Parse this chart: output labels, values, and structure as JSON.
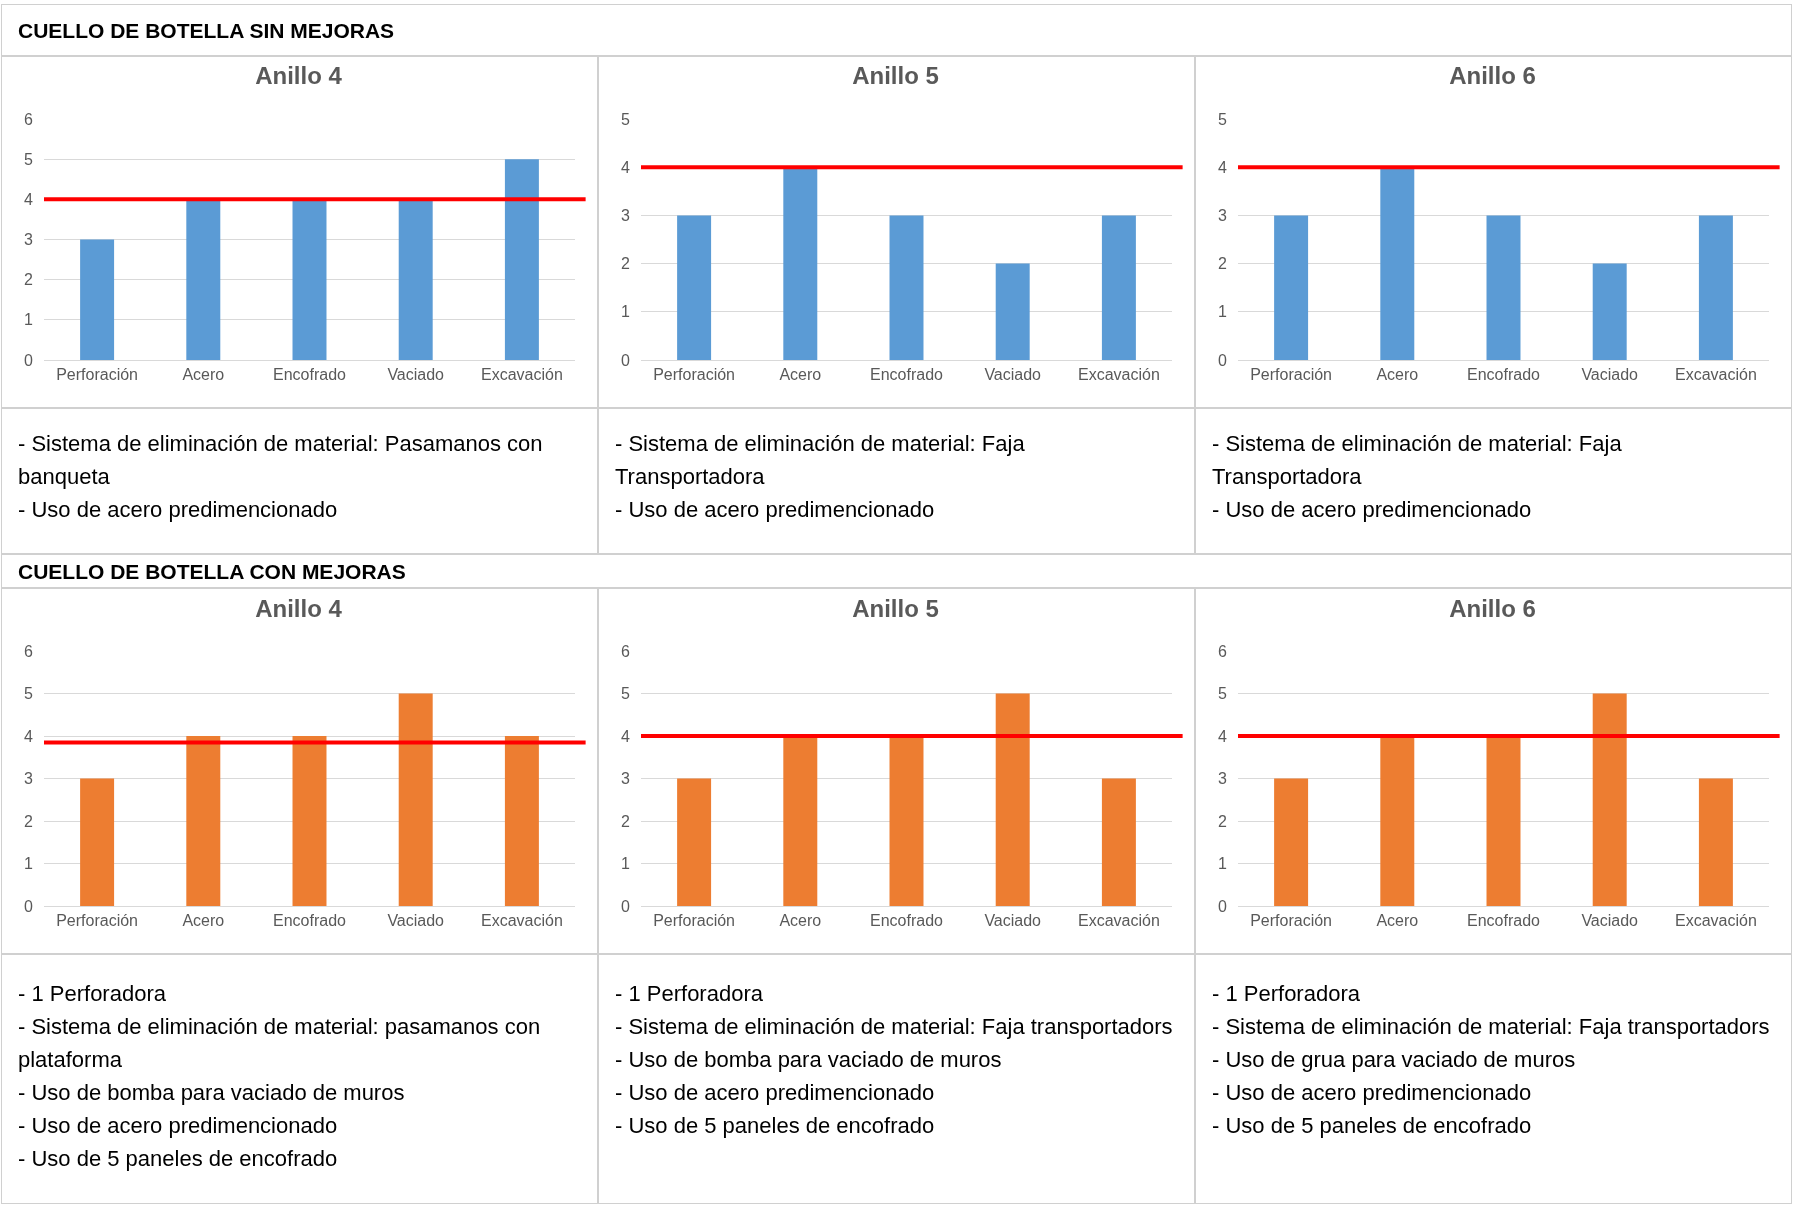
{
  "chart_data": [
    {
      "type": "other",
      "title": "CUELLO DE BOTELLA SIN MEJORAS"
    },
    {
      "type": "bar",
      "title": "Anillo 4",
      "categories": [
        "Perforación",
        "Acero",
        "Encofrado",
        "Vaciado",
        "Excavación"
      ],
      "values": [
        3,
        4,
        4,
        4,
        5
      ],
      "color": "#5b9bd5",
      "ylim": [
        0,
        6
      ],
      "yticks": [
        0,
        1,
        2,
        3,
        4,
        5,
        6
      ],
      "grid": "y",
      "ref_lines": [
        {
          "axis": "y",
          "value": 4,
          "color": "#ff0000"
        }
      ]
    },
    {
      "type": "bar",
      "title": "Anillo 5",
      "categories": [
        "Perforación",
        "Acero",
        "Encofrado",
        "Vaciado",
        "Excavación"
      ],
      "values": [
        3,
        4,
        3,
        2,
        3
      ],
      "color": "#5b9bd5",
      "ylim": [
        0,
        5
      ],
      "yticks": [
        0,
        1,
        2,
        3,
        4,
        5
      ],
      "grid": "y",
      "ref_lines": [
        {
          "axis": "y",
          "value": 4,
          "color": "#ff0000"
        }
      ]
    },
    {
      "type": "bar",
      "title": "Anillo 6",
      "categories": [
        "Perforación",
        "Acero",
        "Encofrado",
        "Vaciado",
        "Excavación"
      ],
      "values": [
        3,
        4,
        3,
        2,
        3
      ],
      "color": "#5b9bd5",
      "ylim": [
        0,
        5
      ],
      "yticks": [
        0,
        1,
        2,
        3,
        4,
        5
      ],
      "grid": "y",
      "ref_lines": [
        {
          "axis": "y",
          "value": 4,
          "color": "#ff0000"
        }
      ]
    },
    {
      "type": "other",
      "annotations": [
        "- Sistema de eliminación de material: Pasamanos con banqueta",
        "- Uso de acero predimencionado"
      ]
    },
    {
      "type": "other",
      "annotations": [
        "- Sistema de eliminación de material: Faja Transportadora",
        "- Uso de acero predimencionado"
      ]
    },
    {
      "type": "other",
      "annotations": [
        "- Sistema de eliminación de material: Faja Transportadora",
        "- Uso de acero predimencionado"
      ]
    },
    {
      "type": "other",
      "title": "CUELLO DE BOTELLA CON MEJORAS"
    },
    {
      "type": "bar",
      "title": "Anillo 4",
      "categories": [
        "Perforación",
        "Acero",
        "Encofrado",
        "Vaciado",
        "Excavación"
      ],
      "values": [
        3,
        4,
        4,
        5,
        4
      ],
      "color": "#ed7d31",
      "ylim": [
        0,
        6
      ],
      "yticks": [
        0,
        1,
        2,
        3,
        4,
        5,
        6
      ],
      "grid": "y",
      "ref_lines": [
        {
          "axis": "y",
          "value": 3.85,
          "color": "#ff0000"
        }
      ]
    },
    {
      "type": "bar",
      "title": "Anillo 5",
      "categories": [
        "Perforación",
        "Acero",
        "Encofrado",
        "Vaciado",
        "Excavación"
      ],
      "values": [
        3,
        4,
        4,
        5,
        3
      ],
      "color": "#ed7d31",
      "ylim": [
        0,
        6
      ],
      "yticks": [
        0,
        1,
        2,
        3,
        4,
        5,
        6
      ],
      "grid": "y",
      "ref_lines": [
        {
          "axis": "y",
          "value": 4,
          "color": "#ff0000"
        }
      ]
    },
    {
      "type": "bar",
      "title": "Anillo 6",
      "categories": [
        "Perforación",
        "Acero",
        "Encofrado",
        "Vaciado",
        "Excavación"
      ],
      "values": [
        3,
        4,
        4,
        5,
        3
      ],
      "color": "#ed7d31",
      "ylim": [
        0,
        6
      ],
      "yticks": [
        0,
        1,
        2,
        3,
        4,
        5,
        6
      ],
      "grid": "y",
      "ref_lines": [
        {
          "axis": "y",
          "value": 4,
          "color": "#ff0000"
        }
      ]
    },
    {
      "type": "other",
      "annotations": [
        "- 1 Perforadora",
        "- Sistema de eliminación de material: pasamanos con plataforma",
        "- Uso de bomba para vaciado de muros",
        "- Uso de acero predimencionado",
        "- Uso de 5 paneles de encofrado"
      ]
    },
    {
      "type": "other",
      "annotations": [
        "- 1 Perforadora",
        "- Sistema de eliminación de material: Faja transportadors",
        "- Uso de bomba para vaciado de muros",
        "- Uso de acero predimencionado",
        "- Uso de 5 paneles de encofrado"
      ]
    },
    {
      "type": "other",
      "annotations": [
        "- 1 Perforadora",
        "- Sistema de eliminación de material: Faja transportadors",
        "- Uso de grua  para vaciado de muros",
        "- Uso de acero predimencionado",
        "- Uso de 5 paneles de encofrado"
      ]
    }
  ]
}
